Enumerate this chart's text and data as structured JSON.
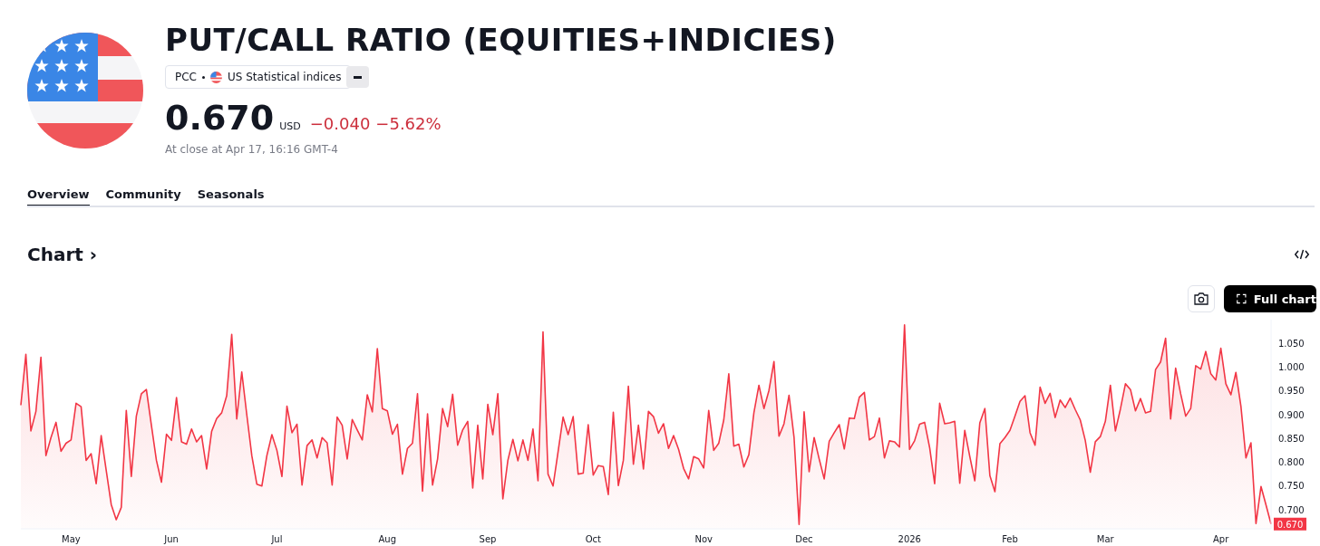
{
  "chart_data": {
    "type": "area",
    "title": "PUT/CALL RATIO (EQUITIES+INDICIES)",
    "annotations": [
      "PCC",
      "US Statistical indices",
      "0.670",
      "USD",
      "−0.040",
      "−5.62%",
      "At close at Apr 17, 16:16 GMT-4",
      "Overview",
      "Community",
      "Seasonals",
      "Chart ›",
      "Full chart",
      {
        "text": "0.670",
        "y": 0.67
      }
    ],
    "categories": [
      null,
      null,
      null,
      null,
      null,
      null,
      null,
      null,
      null,
      null,
      "May",
      null,
      null,
      null,
      null,
      null,
      null,
      null,
      null,
      null,
      null,
      null,
      null,
      null,
      null,
      null,
      null,
      null,
      null,
      null,
      "Jun",
      null,
      null,
      null,
      null,
      null,
      null,
      null,
      null,
      null,
      null,
      null,
      null,
      null,
      null,
      null,
      null,
      null,
      null,
      null,
      null,
      "Jul",
      null,
      null,
      null,
      null,
      null,
      null,
      null,
      null,
      null,
      null,
      null,
      null,
      null,
      null,
      null,
      null,
      null,
      null,
      null,
      null,
      null,
      "Aug",
      null,
      null,
      null,
      null,
      null,
      null,
      null,
      null,
      null,
      null,
      null,
      null,
      null,
      null,
      null,
      null,
      null,
      null,
      null,
      "Sep",
      null,
      null,
      null,
      null,
      null,
      null,
      null,
      null,
      null,
      null,
      null,
      null,
      null,
      null,
      null,
      null,
      null,
      null,
      null,
      null,
      "Oct",
      null,
      null,
      null,
      null,
      null,
      null,
      null,
      null,
      null,
      null,
      null,
      null,
      null,
      null,
      null,
      null,
      null,
      null,
      null,
      null,
      null,
      "Nov",
      null,
      null,
      null,
      null,
      null,
      null,
      null,
      null,
      null,
      null,
      null,
      null,
      null,
      null,
      null,
      null,
      null,
      null,
      null,
      "Dec",
      null,
      null,
      null,
      null,
      null,
      null,
      null,
      null,
      null,
      null,
      null,
      null,
      null,
      null,
      null,
      null,
      null,
      null,
      null,
      null,
      "2026",
      null,
      null,
      null,
      null,
      null,
      null,
      null,
      null,
      null,
      null,
      null,
      null,
      null,
      null,
      null,
      null,
      null,
      null,
      null,
      "Feb",
      null,
      null,
      null,
      null,
      null,
      null,
      null,
      null,
      null,
      null,
      null,
      null,
      null,
      null,
      null,
      null,
      null,
      null,
      "Mar",
      null,
      null,
      null,
      null,
      null,
      null,
      null,
      null,
      null,
      null,
      null,
      null,
      null,
      null,
      null,
      null,
      null,
      null,
      null,
      null,
      null,
      null,
      "Apr",
      null,
      null,
      null,
      null,
      null,
      null,
      null,
      null,
      null,
      null
    ],
    "series": [
      {
        "color": "#f23645",
        "values": [
          0.92,
          1.027,
          0.866,
          0.907,
          1.021,
          0.814,
          0.852,
          0.884,
          0.823,
          0.84,
          0.847,
          0.924,
          0.917,
          0.804,
          0.818,
          0.755,
          0.856,
          0.783,
          0.711,
          0.679,
          0.705,
          0.909,
          0.77,
          0.897,
          0.944,
          0.953,
          0.878,
          0.804,
          0.758,
          0.859,
          0.846,
          0.936,
          0.843,
          0.838,
          0.87,
          0.843,
          0.856,
          0.786,
          0.865,
          0.892,
          0.904,
          0.94,
          1.069,
          0.891,
          0.99,
          0.9,
          0.814,
          0.754,
          0.75,
          0.814,
          0.858,
          0.825,
          0.77,
          0.918,
          0.862,
          0.88,
          0.752,
          0.835,
          0.847,
          0.809,
          0.852,
          0.841,
          0.752,
          0.895,
          0.878,
          0.807,
          0.89,
          0.868,
          0.847,
          0.942,
          0.906,
          1.039,
          0.913,
          0.908,
          0.859,
          0.88,
          0.775,
          0.829,
          0.84,
          0.944,
          0.739,
          0.902,
          0.752,
          0.807,
          0.913,
          0.875,
          0.943,
          0.836,
          0.868,
          0.886,
          0.746,
          0.878,
          0.765,
          0.922,
          0.858,
          0.944,
          0.723,
          0.804,
          0.848,
          0.803,
          0.847,
          0.804,
          0.87,
          0.761,
          1.074,
          0.775,
          0.75,
          0.822,
          0.895,
          0.858,
          0.896,
          0.775,
          0.777,
          0.879,
          0.773,
          0.793,
          0.791,
          0.732,
          0.905,
          0.751,
          0.804,
          0.96,
          0.796,
          0.878,
          0.786,
          0.907,
          0.896,
          0.861,
          0.881,
          0.829,
          0.856,
          0.827,
          0.787,
          0.765,
          0.812,
          0.807,
          0.788,
          0.909,
          0.825,
          0.84,
          0.889,
          0.986,
          0.834,
          0.838,
          0.79,
          0.816,
          0.904,
          0.962,
          0.913,
          0.951,
          1.012,
          0.855,
          0.881,
          0.941,
          0.852,
          0.669,
          0.906,
          0.78,
          0.852,
          0.807,
          0.765,
          0.844,
          0.862,
          0.879,
          0.828,
          0.893,
          0.892,
          0.937,
          0.947,
          0.847,
          0.854,
          0.893,
          0.809,
          0.845,
          0.843,
          0.832,
          1.089,
          0.827,
          0.845,
          0.88,
          0.884,
          0.831,
          0.755,
          0.924,
          0.881,
          0.883,
          0.886,
          0.756,
          0.867,
          0.812,
          0.761,
          0.883,
          0.913,
          0.772,
          0.738,
          0.839,
          0.852,
          0.867,
          0.897,
          0.928,
          0.94,
          0.862,
          0.836,
          0.958,
          0.924,
          0.945,
          0.894,
          0.931,
          0.915,
          0.935,
          0.911,
          0.889,
          0.846,
          0.779,
          0.843,
          0.854,
          0.886,
          0.962,
          0.866,
          0.912,
          0.965,
          0.953,
          0.908,
          0.934,
          0.904,
          0.907,
          0.995,
          1.011,
          1.061,
          0.891,
          0.998,
          0.944,
          0.897,
          0.913,
          1.003,
          0.996,
          1.033,
          0.986,
          0.973,
          1.04,
          0.965,
          0.942,
          0.989,
          0.918,
          0.809,
          0.841,
          0.671,
          0.749,
          0.71,
          0.67
        ]
      }
    ],
    "ylim": [
      0.66,
      1.1
    ],
    "yticks": [
      {
        "value": 0.7,
        "label": "0.700"
      },
      {
        "value": 0.75,
        "label": "0.750"
      },
      {
        "value": 0.8,
        "label": "0.800"
      },
      {
        "value": 0.85,
        "label": "0.850"
      },
      {
        "value": 0.9,
        "label": "0.900"
      },
      {
        "value": 0.95,
        "label": "0.950"
      },
      {
        "value": 1.0,
        "label": "1.000"
      },
      {
        "value": 1.05,
        "label": "1.050"
      }
    ]
  }
}
